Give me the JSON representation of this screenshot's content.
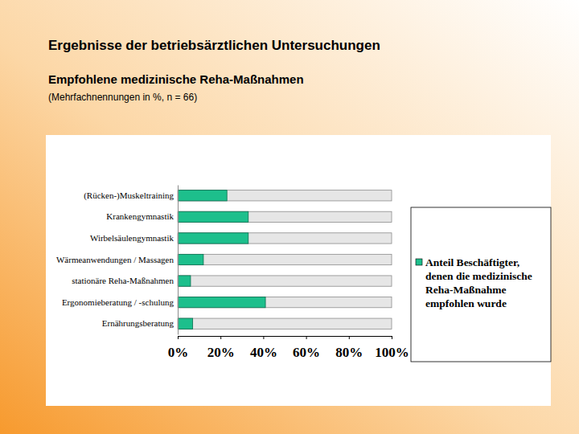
{
  "chart_data": {
    "type": "bar",
    "orientation": "horizontal",
    "title": "Ergebnisse der betriebsärztlichen Untersuchungen",
    "subtitle": "Empfohlene medizinische Reha-Maßnahmen",
    "annotations": [
      "(Mehrfachnennungen in %, n = 66)"
    ],
    "categories": [
      "(Rücken-)Muskeltraining",
      "Krankengymnastik",
      "Wirbelsäulengymnastik",
      "Wärmeanwendungen / Massagen",
      "stationäre Reha-Maßnahmen",
      "Ergonomieberatung / -schulung",
      "Ernährungsberatung"
    ],
    "series": [
      {
        "name": "Anteil Beschäftigter, denen die medizinische Reha-Maßnahme empfohlen wurde",
        "color": "#1dbf8c",
        "values": [
          23,
          33,
          33,
          12,
          6,
          41,
          7
        ]
      }
    ],
    "xlim": [
      0,
      100
    ],
    "xticks": [
      {
        "value": 0,
        "label": "0%"
      },
      {
        "value": 20,
        "label": "20%"
      },
      {
        "value": 40,
        "label": "40%"
      },
      {
        "value": 60,
        "label": "60%"
      },
      {
        "value": 80,
        "label": "80%"
      },
      {
        "value": 100,
        "label": "100%"
      }
    ],
    "grid": false,
    "legend": "right"
  }
}
